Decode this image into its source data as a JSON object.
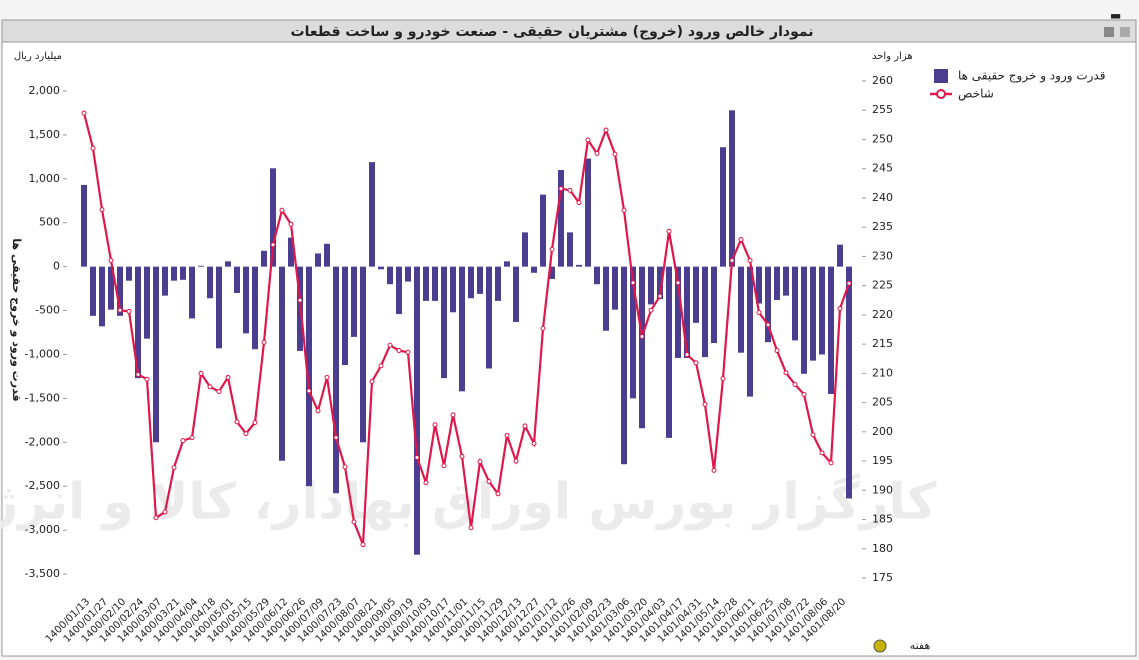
{
  "chart_data": {
    "type": "bar_line",
    "title": "نمودار خالص ورود (خروج) مشتریان حقیقی - صنعت خودرو و ساخت قطعات",
    "y_unit": "میلیارد ریال",
    "y2_unit": "هزار واحد",
    "ylabel": "قدرت ورود و خروج حقیقی ها",
    "xlabel": "هفته",
    "watermark": "کارگزار بورس اوراق بهادار، کالا و انرژی",
    "categories": [
      "1400/01/13",
      null,
      "1400/01/27",
      null,
      "1400/02/10",
      null,
      "1400/02/24",
      null,
      "1400/03/07",
      null,
      "1400/03/21",
      null,
      "1400/04/04",
      null,
      "1400/04/18",
      null,
      "1400/05/01",
      null,
      "1400/05/15",
      null,
      "1400/05/29",
      null,
      "1400/06/12",
      null,
      "1400/06/26",
      null,
      "1400/07/09",
      null,
      "1400/07/23",
      null,
      "1400/08/07",
      null,
      "1400/08/21",
      null,
      "1400/09/05",
      null,
      "1400/09/19",
      null,
      "1400/10/03",
      null,
      "1400/10/17",
      null,
      "1400/11/01",
      null,
      "1400/11/15",
      null,
      "1400/11/29",
      null,
      "1400/12/13",
      null,
      "1400/12/27",
      null,
      "1401/01/12",
      null,
      "1401/01/26",
      null,
      "1401/02/09",
      null,
      "1401/02/23",
      null,
      "1401/03/06",
      null,
      "1401/03/20",
      null,
      "1401/04/03",
      null,
      "1401/04/17",
      null,
      "1401/04/31",
      null,
      "1401/05/14",
      null,
      "1401/05/28",
      null,
      "1401/06/11",
      null,
      "1401/06/25",
      null,
      "1401/07/08",
      null,
      "1401/07/22",
      null,
      "1401/08/06",
      null,
      "1401/08/20",
      null
    ],
    "series": [
      {
        "name": "قدرت ورود و خروج حقیقی ها",
        "color": "#4b3d8f",
        "kind": "bar",
        "values": [
          930,
          -560,
          -680,
          -490,
          -560,
          -160,
          -1270,
          -820,
          -2000,
          -330,
          -160,
          -150,
          -590,
          10,
          -360,
          -930,
          60,
          -300,
          -760,
          -940,
          180,
          1120,
          -2210,
          330,
          -960,
          -2500,
          150,
          260,
          -2580,
          -1120,
          -800,
          -2000,
          1190,
          -30,
          -200,
          -540,
          -170,
          -3280,
          -390,
          -390,
          -1270,
          -520,
          -1420,
          -360,
          -310,
          -1160,
          -390,
          60,
          -630,
          390,
          -70,
          820,
          -140,
          1100,
          390,
          20,
          1230,
          -200,
          -730,
          -490,
          -2250,
          -1500,
          -1840,
          -430,
          -370,
          -1950,
          -1040,
          -1040,
          -640,
          -1030,
          -870,
          1360,
          1780,
          -980,
          -1480,
          -420,
          -860,
          -380,
          -330,
          -840,
          -1220,
          -1070,
          -1000,
          -1450,
          250,
          -2640
        ]
      },
      {
        "name": "شاخص",
        "color": "#e0174a",
        "kind": "line",
        "axis": "y2",
        "values": [
          254.5,
          248.5,
          238,
          229.3,
          220.8,
          220.6,
          209.8,
          209,
          185.3,
          186.3,
          193.9,
          198.5,
          199,
          210,
          207.7,
          206.9,
          209.3,
          201.7,
          199.7,
          201.6,
          215.3,
          232,
          237.9,
          235.5,
          222.5,
          207,
          203.6,
          209.3,
          199,
          194,
          184.6,
          180.7,
          208.6,
          211.3,
          214.8,
          213.9,
          213.6,
          195.6,
          191.3,
          201.2,
          194.2,
          202.9,
          195.8,
          183.6,
          194.9,
          191.5,
          189.4,
          199.4,
          195,
          201,
          198,
          217.7,
          231.2,
          241.6,
          241.3,
          239.2,
          249.9,
          247.6,
          251.6,
          247.5,
          237.9,
          225.5,
          216.3,
          220.8,
          223.2,
          234.3,
          225.5,
          213.2,
          211.8,
          204.7,
          193.4,
          209.1,
          229.3,
          232.9,
          229.3,
          220.4,
          218.3,
          213.9,
          210.1,
          208.1,
          206.4,
          199.5,
          196.4,
          194.7,
          221.1,
          225.4
        ]
      }
    ],
    "ylim": [
      -3500,
      2000
    ],
    "yticks": [
      {
        "value": -3500,
        "label": "-3,500"
      },
      {
        "value": -3000,
        "label": "-3,000"
      },
      {
        "value": -2500,
        "label": "-2,500"
      },
      {
        "value": -2000,
        "label": "-2,000"
      },
      {
        "value": -1500,
        "label": "-1,500"
      },
      {
        "value": -1000,
        "label": "-1,000"
      },
      -500,
      0,
      500,
      {
        "value": 1000,
        "label": "1,000"
      },
      {
        "value": 1500,
        "label": "1,500"
      },
      {
        "value": 2000,
        "label": "2,000"
      }
    ],
    "y2lim": [
      175,
      260
    ],
    "y2ticks": [
      175,
      180,
      185,
      190,
      195,
      200,
      205,
      210,
      215,
      220,
      225,
      230,
      235,
      240,
      245,
      250,
      255,
      260
    ],
    "legend": "right"
  }
}
